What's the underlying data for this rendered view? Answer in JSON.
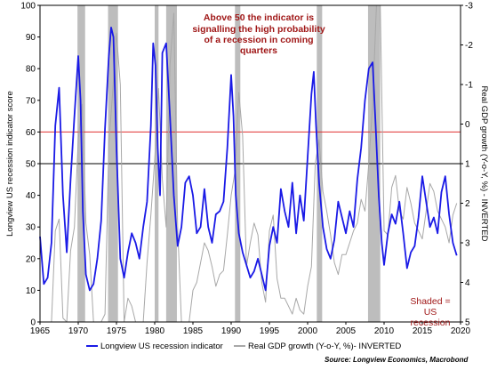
{
  "chart_data": {
    "type": "line",
    "annotation_lines": [
      "Above 50 the indicator is",
      "signalling the high probability",
      "of a recession in coming",
      "quarters"
    ],
    "shaded_note_lines": [
      "Shaded =",
      "US",
      "recession"
    ],
    "source": "Source: Longview Economics, Macrobond",
    "ylabel_left": "Longview US recession indicator score",
    "ylabel_right": "Real GDP growth (Y-o-Y, %) - INVERTED",
    "x_ticks": [
      "1965",
      "1970",
      "1975",
      "1980",
      "1985",
      "1990",
      "1995",
      "2000",
      "2005",
      "2010",
      "2015",
      "2020"
    ],
    "y_left_ticks": [
      "0",
      "10",
      "20",
      "30",
      "40",
      "50",
      "60",
      "70",
      "80",
      "90",
      "100"
    ],
    "y_right_ticks": [
      "-3",
      "-2",
      "-1",
      "0",
      "1",
      "2",
      "3",
      "4",
      "5"
    ],
    "xlim": [
      1965,
      2020
    ],
    "ylim_left": [
      0,
      100
    ],
    "ylim_right_inverted": [
      -3,
      5
    ],
    "reference_lines": [
      {
        "value": 60,
        "color": "#e03030"
      },
      {
        "value": 50,
        "color": "#000000"
      }
    ],
    "recessions": [
      [
        1969.9,
        1970.9
      ],
      [
        1973.9,
        1975.2
      ],
      [
        1980.0,
        1980.5
      ],
      [
        1981.5,
        1982.9
      ],
      [
        1990.5,
        1991.2
      ],
      [
        2001.2,
        2001.9
      ],
      [
        2007.9,
        2009.5
      ]
    ],
    "series": [
      {
        "name": "Longview US recession indicator",
        "color": "#1a1ae6",
        "axis": "left",
        "x": [
          1965.0,
          1965.5,
          1966.0,
          1966.5,
          1967.0,
          1967.5,
          1968.0,
          1968.5,
          1969.0,
          1969.5,
          1970.0,
          1970.3,
          1970.6,
          1971.0,
          1971.5,
          1972.0,
          1972.5,
          1973.0,
          1973.5,
          1974.0,
          1974.3,
          1974.6,
          1975.0,
          1975.5,
          1976.0,
          1976.5,
          1977.0,
          1977.5,
          1978.0,
          1978.5,
          1979.0,
          1979.5,
          1979.8,
          1980.1,
          1980.4,
          1980.7,
          1981.0,
          1981.5,
          1982.0,
          1982.5,
          1983.0,
          1983.5,
          1984.0,
          1984.5,
          1985.0,
          1985.5,
          1986.0,
          1986.5,
          1987.0,
          1987.5,
          1988.0,
          1988.5,
          1989.0,
          1989.5,
          1990.0,
          1990.3,
          1990.6,
          1991.0,
          1991.5,
          1992.0,
          1992.5,
          1993.0,
          1993.5,
          1994.0,
          1994.5,
          1995.0,
          1995.5,
          1996.0,
          1996.5,
          1997.0,
          1997.5,
          1998.0,
          1998.5,
          1999.0,
          1999.5,
          2000.0,
          2000.5,
          2000.8,
          2001.1,
          2001.5,
          2002.0,
          2002.5,
          2003.0,
          2003.5,
          2004.0,
          2004.5,
          2005.0,
          2005.5,
          2006.0,
          2006.5,
          2007.0,
          2007.5,
          2008.0,
          2008.5,
          2008.9,
          2009.3,
          2009.7,
          2010.0,
          2010.5,
          2011.0,
          2011.5,
          2012.0,
          2012.5,
          2013.0,
          2013.5,
          2014.0,
          2014.5,
          2015.0,
          2015.5,
          2016.0,
          2016.5,
          2017.0,
          2017.5,
          2018.0,
          2018.5,
          2019.0,
          2019.5
        ],
        "y": [
          27,
          12,
          14,
          25,
          62,
          74,
          40,
          22,
          45,
          65,
          84,
          70,
          35,
          15,
          10,
          12,
          20,
          32,
          61,
          84,
          93,
          90,
          55,
          20,
          14,
          22,
          28,
          25,
          20,
          30,
          38,
          62,
          88,
          81,
          55,
          40,
          85,
          88,
          65,
          40,
          24,
          30,
          44,
          46,
          40,
          28,
          30,
          42,
          30,
          25,
          34,
          35,
          38,
          55,
          78,
          65,
          40,
          28,
          22,
          18,
          14,
          16,
          20,
          15,
          10,
          24,
          30,
          25,
          42,
          35,
          30,
          44,
          28,
          40,
          32,
          52,
          72,
          79,
          62,
          44,
          30,
          23,
          20,
          26,
          38,
          33,
          28,
          35,
          30,
          45,
          55,
          70,
          80,
          82,
          62,
          40,
          25,
          18,
          28,
          34,
          31,
          38,
          28,
          17,
          22,
          24,
          33,
          46,
          38,
          30,
          33,
          28,
          41,
          46,
          34,
          25,
          21
        ]
      },
      {
        "name": "Real GDP growth (Y-o-Y, %)- INVERTED",
        "color": "#a8a8a8",
        "axis": "right",
        "x": [
          1965.0,
          1965.5,
          1966.0,
          1966.5,
          1967.0,
          1967.5,
          1968.0,
          1968.5,
          1969.0,
          1969.5,
          1970.0,
          1970.5,
          1971.0,
          1971.5,
          1972.0,
          1972.5,
          1973.0,
          1973.5,
          1974.0,
          1974.5,
          1975.0,
          1975.5,
          1976.0,
          1976.5,
          1977.0,
          1977.5,
          1978.0,
          1978.5,
          1979.0,
          1979.5,
          1980.0,
          1980.5,
          1981.0,
          1981.5,
          1982.0,
          1982.5,
          1983.0,
          1983.5,
          1984.0,
          1984.5,
          1985.0,
          1985.5,
          1986.0,
          1986.5,
          1987.0,
          1987.5,
          1988.0,
          1988.5,
          1989.0,
          1989.5,
          1990.0,
          1990.5,
          1991.0,
          1991.5,
          1992.0,
          1992.5,
          1993.0,
          1993.5,
          1994.0,
          1994.5,
          1995.0,
          1995.5,
          1996.0,
          1996.5,
          1997.0,
          1997.5,
          1998.0,
          1998.5,
          1999.0,
          1999.5,
          2000.0,
          2000.5,
          2001.0,
          2001.5,
          2002.0,
          2002.5,
          2003.0,
          2003.5,
          2004.0,
          2004.5,
          2005.0,
          2005.5,
          2006.0,
          2006.5,
          2007.0,
          2007.5,
          2008.0,
          2008.5,
          2009.0,
          2009.5,
          2010.0,
          2010.5,
          2011.0,
          2011.5,
          2012.0,
          2012.5,
          2013.0,
          2013.5,
          2014.0,
          2014.5,
          2015.0,
          2015.5,
          2016.0,
          2016.5,
          2017.0,
          2017.5,
          2018.0,
          2018.5,
          2019.0,
          2019.5
        ],
        "y": [
          5.8,
          6.5,
          6.6,
          5.5,
          2.7,
          2.4,
          4.9,
          5.0,
          3.2,
          2.6,
          0.4,
          -0.5,
          2.5,
          3.3,
          5.0,
          5.5,
          6.6,
          4.8,
          0.5,
          -0.8,
          -2.3,
          -1.0,
          5.4,
          4.4,
          4.6,
          5.4,
          6.5,
          5.2,
          3.5,
          2.3,
          0.9,
          -0.9,
          1.4,
          2.6,
          -1.5,
          -2.8,
          2.6,
          6.5,
          7.8,
          6.7,
          4.2,
          4.0,
          3.5,
          3.0,
          3.2,
          3.6,
          4.1,
          3.8,
          3.7,
          2.8,
          1.8,
          1.2,
          -0.8,
          0.3,
          3.6,
          3.0,
          2.5,
          2.8,
          4.0,
          4.5,
          2.7,
          2.3,
          3.9,
          4.4,
          4.4,
          4.6,
          4.8,
          4.4,
          4.7,
          4.8,
          4.1,
          3.6,
          1.0,
          0.4,
          1.7,
          2.2,
          2.8,
          3.5,
          3.8,
          3.3,
          3.3,
          3.0,
          2.7,
          2.5,
          1.9,
          2.2,
          1.0,
          -0.5,
          -3.3,
          -3.8,
          2.7,
          2.8,
          1.6,
          1.3,
          2.2,
          2.4,
          1.6,
          2.0,
          2.5,
          2.7,
          2.9,
          2.2,
          1.5,
          1.7,
          2.2,
          2.4,
          2.6,
          3.0,
          2.3,
          2.0
        ]
      }
    ]
  }
}
